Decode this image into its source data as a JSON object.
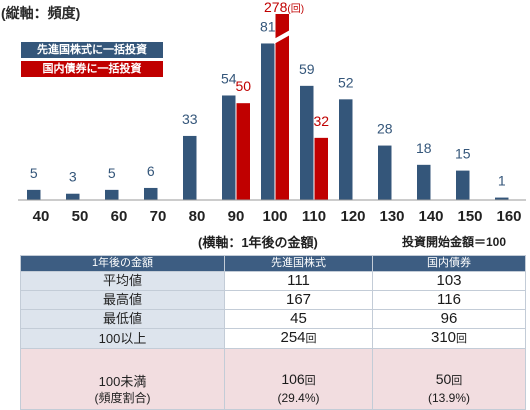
{
  "colors": {
    "table_header": "#3d5d82",
    "table_label_cell": "#dde4ed",
    "table_last_row": "#f2dde0"
  },
  "chart_data": {
    "type": "bar",
    "categories": [
      "40",
      "50",
      "60",
      "70",
      "80",
      "90",
      "100",
      "110",
      "120",
      "130",
      "140",
      "150",
      "160"
    ],
    "series": [
      {
        "name": "先進国株式に一括投資",
        "color": "#34567a",
        "values": [
          5,
          3,
          5,
          6,
          33,
          54,
          81,
          59,
          52,
          28,
          18,
          15,
          1
        ]
      },
      {
        "name": "国内債券に一括投資",
        "color": "#c00000",
        "values": [
          null,
          null,
          null,
          null,
          null,
          50,
          278,
          32,
          null,
          null,
          null,
          null,
          null
        ]
      }
    ],
    "ylabel": "(縦軸：頻度)",
    "xlabel": "(横軸：1年後の金額)",
    "annotation": "投資開始金額＝100",
    "break_label_unit": "(回)",
    "ylim": [
      0,
      95
    ],
    "y_axis_break": true,
    "grid": false,
    "legend_position": "top-left"
  },
  "table": {
    "header": [
      "1年後の金額",
      "先進国株式",
      "国内債券"
    ],
    "rows": [
      {
        "label": "平均値",
        "stock": "111",
        "bond": "103"
      },
      {
        "label": "最高値",
        "stock": "167",
        "bond": "116"
      },
      {
        "label": "最低値",
        "stock": "45",
        "bond": "96"
      },
      {
        "label": "100以上",
        "stock": "254",
        "stock_unit": "回",
        "bond": "310",
        "bond_unit": "回"
      },
      {
        "label": "100未満",
        "label_sub": "(頻度割合)",
        "stock": "106",
        "stock_unit": "回",
        "stock_sub": "(29.4%)",
        "bond": "50",
        "bond_unit": "回",
        "bond_sub": "(13.9%)"
      }
    ]
  }
}
